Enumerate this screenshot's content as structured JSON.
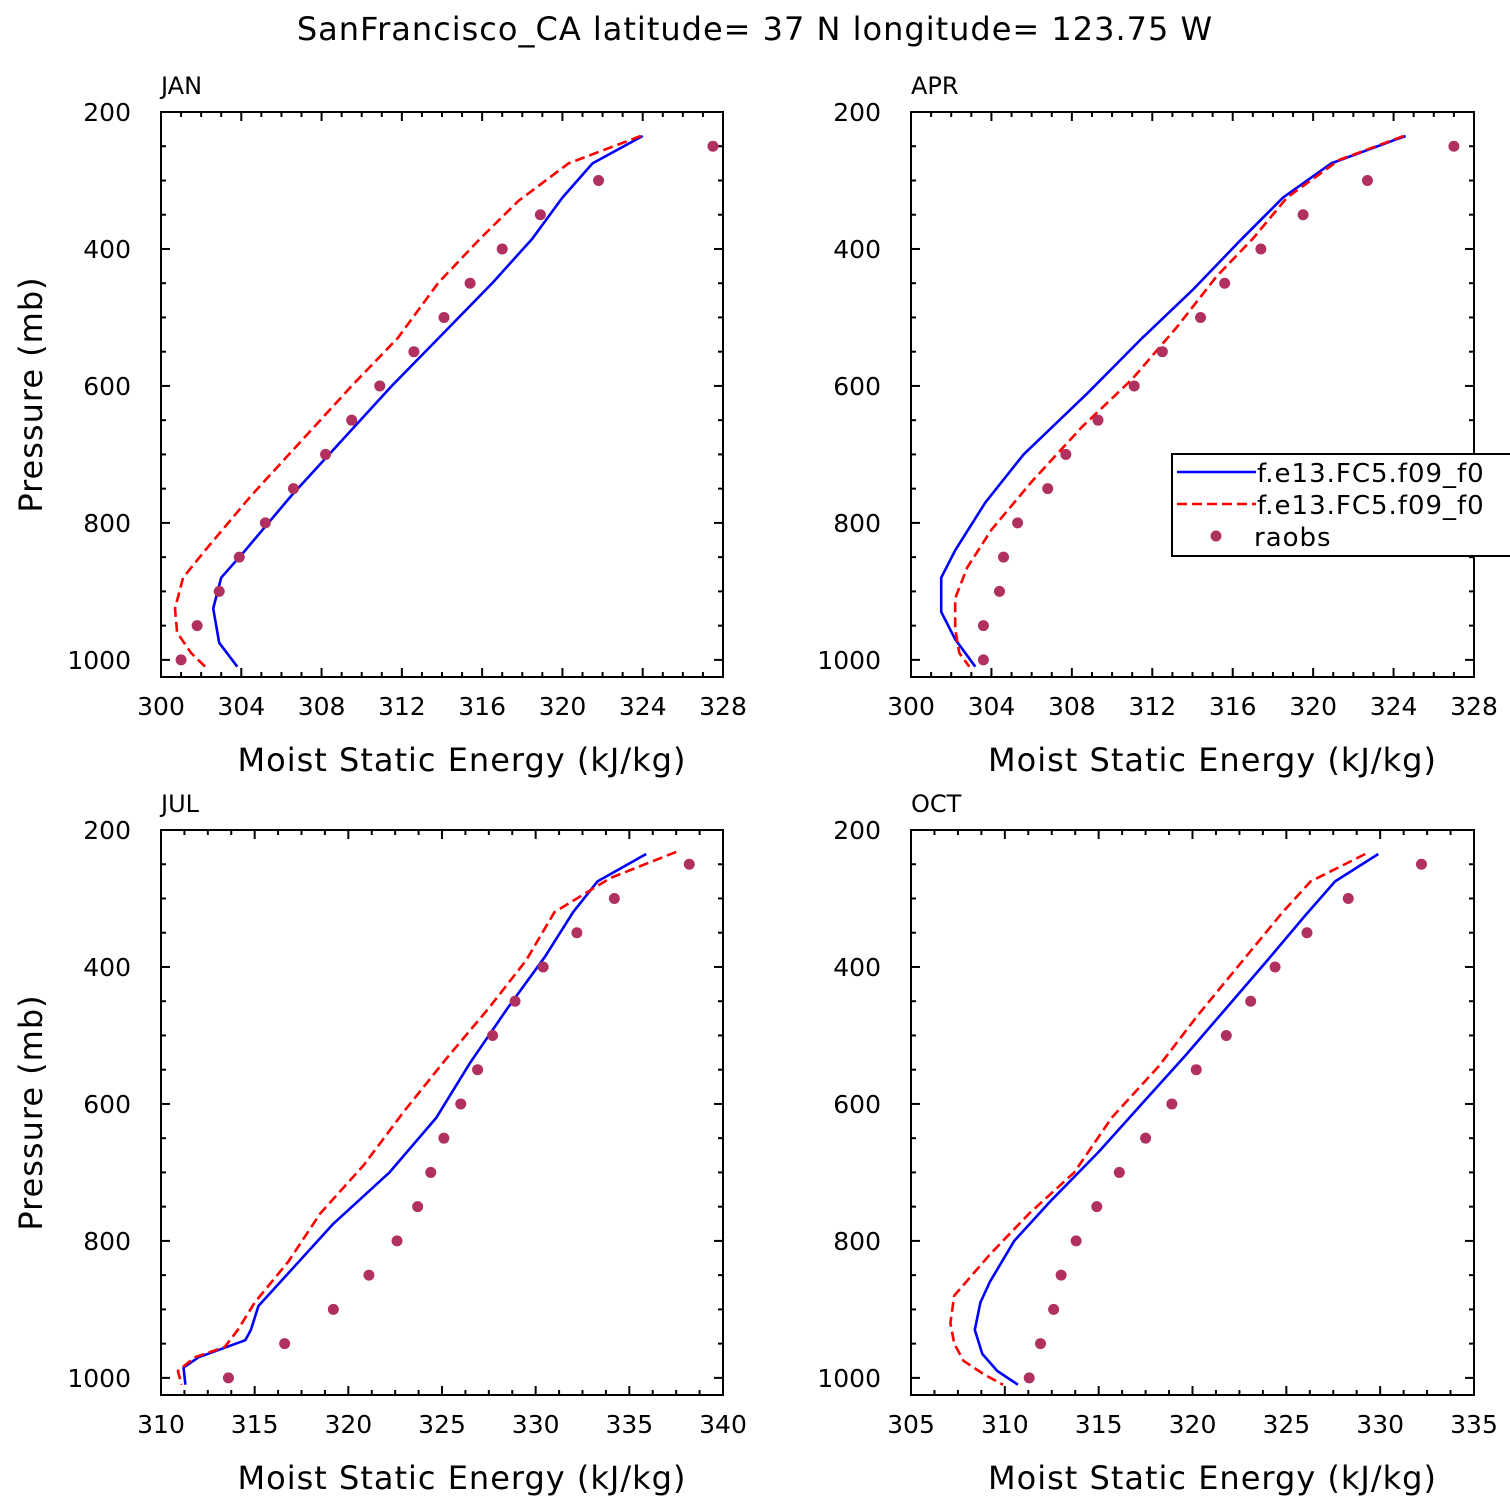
{
  "figure": {
    "title": "SanFrancisco_CA  latitude= 37 N longitude= 123.75 W"
  },
  "colors": {
    "series_solid": "#0000ff",
    "series_dashed": "#ff0000",
    "series_points": "#b03060",
    "axis": "#000000"
  },
  "legend": {
    "entries": [
      "f.e13.FC5.f09_f0",
      "f.e13.FC5.f09_f0",
      "raobs"
    ]
  },
  "chart_data": [
    {
      "type": "line",
      "panel": "JAN",
      "xlabel": "Moist Static Energy (kJ/kg)",
      "ylabel": "Pressure (mb)",
      "xlim": [
        300,
        328
      ],
      "ylim": [
        1025,
        200
      ],
      "xticks": [
        300,
        304,
        308,
        312,
        316,
        320,
        324,
        328
      ],
      "yticks": [
        200,
        400,
        600,
        800,
        1000
      ],
      "series": [
        {
          "name": "f.e13.FC5.f09_f0",
          "style": "solid",
          "points": [
            [
              324.0,
              235
            ],
            [
              321.5,
              275
            ],
            [
              320.0,
              325
            ],
            [
              318.5,
              385
            ],
            [
              316.5,
              450
            ],
            [
              314.0,
              525
            ],
            [
              311.5,
              600
            ],
            [
              309.0,
              680
            ],
            [
              306.5,
              760
            ],
            [
              304.2,
              840
            ],
            [
              303.0,
              880
            ],
            [
              302.6,
              925
            ],
            [
              302.9,
              975
            ],
            [
              303.8,
              1010
            ]
          ]
        },
        {
          "name": "f.e13.FC5.f09_f0",
          "style": "dashed",
          "points": [
            [
              323.9,
              235
            ],
            [
              320.3,
              275
            ],
            [
              317.8,
              330
            ],
            [
              315.9,
              385
            ],
            [
              313.8,
              450
            ],
            [
              311.8,
              530
            ],
            [
              309.5,
              600
            ],
            [
              307.0,
              680
            ],
            [
              304.5,
              760
            ],
            [
              302.2,
              840
            ],
            [
              301.1,
              880
            ],
            [
              300.7,
              925
            ],
            [
              300.8,
              960
            ],
            [
              301.5,
              990
            ],
            [
              302.2,
              1010
            ]
          ]
        },
        {
          "name": "raobs",
          "style": "markers",
          "points": [
            [
              327.5,
              250
            ],
            [
              321.8,
              300
            ],
            [
              318.9,
              350
            ],
            [
              317.0,
              400
            ],
            [
              315.4,
              450
            ],
            [
              314.1,
              500
            ],
            [
              312.6,
              550
            ],
            [
              310.9,
              600
            ],
            [
              309.5,
              650
            ],
            [
              308.2,
              700
            ],
            [
              306.6,
              750
            ],
            [
              305.2,
              800
            ],
            [
              303.9,
              850
            ],
            [
              302.9,
              900
            ],
            [
              301.8,
              950
            ],
            [
              301.0,
              1000
            ]
          ]
        }
      ]
    },
    {
      "type": "line",
      "panel": "APR",
      "xlabel": "Moist Static Energy (kJ/kg)",
      "ylabel": "",
      "xlim": [
        300,
        328
      ],
      "ylim": [
        1025,
        200
      ],
      "xticks": [
        300,
        304,
        308,
        312,
        316,
        320,
        324,
        328
      ],
      "yticks": [
        200,
        400,
        600,
        800,
        1000
      ],
      "series": [
        {
          "name": "f.e13.FC5.f09_f0",
          "style": "solid",
          "points": [
            [
              324.6,
              235
            ],
            [
              320.9,
              275
            ],
            [
              318.5,
              325
            ],
            [
              316.3,
              390
            ],
            [
              314.0,
              460
            ],
            [
              311.5,
              530
            ],
            [
              308.8,
              610
            ],
            [
              305.6,
              700
            ],
            [
              303.7,
              770
            ],
            [
              302.2,
              840
            ],
            [
              301.5,
              880
            ],
            [
              301.5,
              930
            ],
            [
              302.2,
              970
            ],
            [
              303.2,
              1010
            ]
          ]
        },
        {
          "name": "f.e13.FC5.f09_f0",
          "style": "dashed",
          "points": [
            [
              324.5,
              235
            ],
            [
              321.3,
              270
            ],
            [
              318.7,
              325
            ],
            [
              317.0,
              385
            ],
            [
              315.2,
              440
            ],
            [
              313.2,
              515
            ],
            [
              311.0,
              590
            ],
            [
              308.5,
              660
            ],
            [
              306.0,
              740
            ],
            [
              304.0,
              810
            ],
            [
              302.8,
              865
            ],
            [
              302.2,
              910
            ],
            [
              302.2,
              955
            ],
            [
              302.4,
              990
            ],
            [
              302.9,
              1010
            ]
          ]
        },
        {
          "name": "raobs",
          "style": "markers",
          "points": [
            [
              327.0,
              250
            ],
            [
              322.7,
              300
            ],
            [
              319.5,
              350
            ],
            [
              317.4,
              400
            ],
            [
              315.6,
              450
            ],
            [
              314.4,
              500
            ],
            [
              312.5,
              550
            ],
            [
              311.1,
              600
            ],
            [
              309.3,
              650
            ],
            [
              307.7,
              700
            ],
            [
              306.8,
              750
            ],
            [
              305.3,
              800
            ],
            [
              304.6,
              850
            ],
            [
              304.4,
              900
            ],
            [
              303.6,
              950
            ],
            [
              303.6,
              1000
            ]
          ]
        }
      ]
    },
    {
      "type": "line",
      "panel": "JUL",
      "xlabel": "Moist Static Energy (kJ/kg)",
      "ylabel": "Pressure (mb)",
      "xlim": [
        310,
        340
      ],
      "ylim": [
        1025,
        200
      ],
      "xticks": [
        310,
        315,
        320,
        325,
        330,
        335,
        340
      ],
      "yticks": [
        200,
        400,
        600,
        800,
        1000
      ],
      "series": [
        {
          "name": "f.e13.FC5.f09_f0",
          "style": "solid",
          "points": [
            [
              335.9,
              235
            ],
            [
              333.3,
              275
            ],
            [
              332.0,
              320
            ],
            [
              330.5,
              385
            ],
            [
              328.5,
              460
            ],
            [
              326.5,
              540
            ],
            [
              324.7,
              620
            ],
            [
              322.2,
              700
            ],
            [
              319.2,
              775
            ],
            [
              317.2,
              835
            ],
            [
              315.2,
              895
            ],
            [
              314.8,
              930
            ],
            [
              314.5,
              945
            ],
            [
              312.0,
              970
            ],
            [
              311.2,
              985
            ],
            [
              311.3,
              1010
            ]
          ]
        },
        {
          "name": "f.e13.FC5.f09_f0",
          "style": "dashed",
          "points": [
            [
              337.5,
              232
            ],
            [
              334.0,
              270
            ],
            [
              331.0,
              320
            ],
            [
              329.5,
              390
            ],
            [
              327.5,
              460
            ],
            [
              325.2,
              535
            ],
            [
              323.0,
              610
            ],
            [
              320.8,
              690
            ],
            [
              318.5,
              760
            ],
            [
              316.8,
              830
            ],
            [
              315.0,
              890
            ],
            [
              314.1,
              930
            ],
            [
              313.4,
              955
            ],
            [
              311.8,
              970
            ],
            [
              310.9,
              990
            ],
            [
              311.1,
              1010
            ]
          ]
        },
        {
          "name": "raobs",
          "style": "markers",
          "points": [
            [
              338.2,
              250
            ],
            [
              334.2,
              300
            ],
            [
              332.2,
              350
            ],
            [
              330.4,
              400
            ],
            [
              328.9,
              450
            ],
            [
              327.7,
              500
            ],
            [
              326.9,
              550
            ],
            [
              326.0,
              600
            ],
            [
              325.1,
              650
            ],
            [
              324.4,
              700
            ],
            [
              323.7,
              750
            ],
            [
              322.6,
              800
            ],
            [
              321.1,
              850
            ],
            [
              319.2,
              900
            ],
            [
              316.6,
              950
            ],
            [
              313.6,
              1000
            ]
          ]
        }
      ]
    },
    {
      "type": "line",
      "panel": "OCT",
      "xlabel": "Moist Static Energy (kJ/kg)",
      "ylabel": "",
      "xlim": [
        305,
        335
      ],
      "ylim": [
        1025,
        200
      ],
      "xticks": [
        305,
        310,
        315,
        320,
        325,
        330,
        335
      ],
      "yticks": [
        200,
        400,
        600,
        800,
        1000
      ],
      "series": [
        {
          "name": "f.e13.FC5.f09_f0",
          "style": "solid",
          "points": [
            [
              329.9,
              235
            ],
            [
              327.6,
              275
            ],
            [
              326.0,
              325
            ],
            [
              324.0,
              390
            ],
            [
              321.8,
              460
            ],
            [
              319.6,
              530
            ],
            [
              317.3,
              600
            ],
            [
              315.0,
              670
            ],
            [
              312.5,
              740
            ],
            [
              310.5,
              800
            ],
            [
              309.2,
              860
            ],
            [
              308.7,
              890
            ],
            [
              308.4,
              930
            ],
            [
              308.8,
              965
            ],
            [
              309.6,
              990
            ],
            [
              310.7,
              1010
            ]
          ]
        },
        {
          "name": "f.e13.FC5.f09_f0",
          "style": "dashed",
          "points": [
            [
              329.2,
              235
            ],
            [
              326.3,
              275
            ],
            [
              324.8,
              320
            ],
            [
              322.7,
              390
            ],
            [
              320.3,
              470
            ],
            [
              318.2,
              545
            ],
            [
              315.7,
              620
            ],
            [
              313.7,
              700
            ],
            [
              311.3,
              760
            ],
            [
              309.2,
              820
            ],
            [
              307.3,
              880
            ],
            [
              307.1,
              920
            ],
            [
              307.3,
              950
            ],
            [
              307.8,
              975
            ],
            [
              308.9,
              995
            ],
            [
              309.9,
              1010
            ]
          ]
        },
        {
          "name": "raobs",
          "style": "markers",
          "points": [
            [
              332.2,
              250
            ],
            [
              328.3,
              300
            ],
            [
              326.1,
              350
            ],
            [
              324.4,
              400
            ],
            [
              323.1,
              450
            ],
            [
              321.8,
              500
            ],
            [
              320.2,
              550
            ],
            [
              318.9,
              600
            ],
            [
              317.5,
              650
            ],
            [
              316.1,
              700
            ],
            [
              314.9,
              750
            ],
            [
              313.8,
              800
            ],
            [
              313.0,
              850
            ],
            [
              312.6,
              900
            ],
            [
              311.9,
              950
            ],
            [
              311.3,
              1000
            ]
          ]
        }
      ]
    }
  ]
}
